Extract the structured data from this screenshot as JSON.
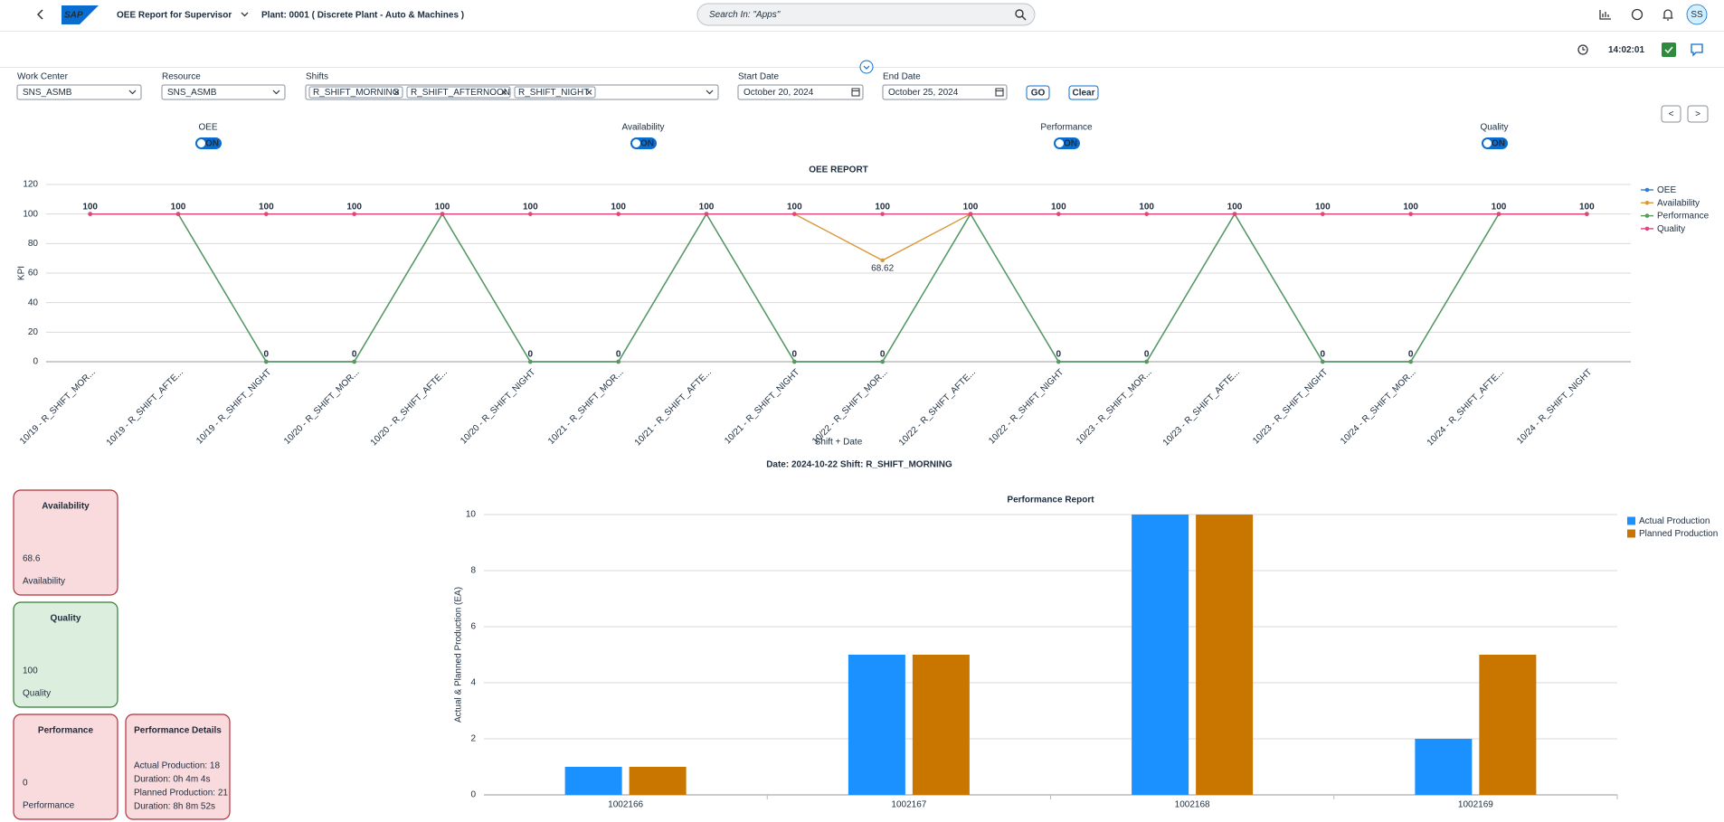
{
  "header": {
    "logo": "SAP",
    "title": "OEE Report for Supervisor",
    "plant": "Plant: 0001 ( Discrete Plant - Auto & Machines )",
    "search_placeholder": "Search In: \"Apps\"",
    "avatar": "SS",
    "time": "14:02:01"
  },
  "filters": {
    "work_center": {
      "label": "Work Center",
      "value": "SNS_ASMB"
    },
    "resource": {
      "label": "Resource",
      "value": "SNS_ASMB"
    },
    "shifts": {
      "label": "Shifts",
      "tokens": [
        "R_SHIFT_MORNING",
        "R_SHIFT_AFTERNOON",
        "R_SHIFT_NIGHT"
      ]
    },
    "start_date": {
      "label": "Start Date",
      "value": "October 20, 2024"
    },
    "end_date": {
      "label": "End Date",
      "value": "October 25, 2024"
    },
    "go": "GO",
    "clear": "Clear",
    "prev": "<",
    "next": ">"
  },
  "toggles": [
    {
      "label": "OEE",
      "state": "ON"
    },
    {
      "label": "Availability",
      "state": "ON"
    },
    {
      "label": "Performance",
      "state": "ON"
    },
    {
      "label": "Quality",
      "state": "ON"
    }
  ],
  "selection_title": "Date: 2024-10-22 Shift: R_SHIFT_MORNING",
  "kpi_cards": [
    {
      "title": "Availability",
      "value": 68.6,
      "caption": "Availability",
      "fill": "#f9dadd",
      "border": "#b3303a"
    },
    {
      "title": "Quality",
      "value": 100,
      "caption": "Quality",
      "fill": "#dcefdf",
      "border": "#2f7d32"
    },
    {
      "title": "Performance",
      "value": 0,
      "caption": "Performance",
      "fill": "#f9dadd",
      "border": "#b3303a"
    }
  ],
  "details_card": {
    "title": "Performance Details",
    "lines": [
      "Actual Production: 18",
      "Duration: 0h 4m 4s",
      "Planned Production: 21",
      "Duration: 8h 8m 52s"
    ],
    "fill": "#f9dadd",
    "border": "#b3303a"
  },
  "chart_data": [
    {
      "type": "line",
      "title": "OEE REPORT",
      "x_label": "Shift + Date",
      "y_label": "KPI",
      "categories": [
        "10/19 - R_SHIFT_MOR...",
        "10/19 - R_SHIFT_AFTE...",
        "10/19 - R_SHIFT_NIGHT",
        "10/20 - R_SHIFT_MOR...",
        "10/20 - R_SHIFT_AFTE...",
        "10/20 - R_SHIFT_NIGHT",
        "10/21 - R_SHIFT_MOR...",
        "10/21 - R_SHIFT_AFTE...",
        "10/21 - R_SHIFT_NIGHT",
        "10/22 - R_SHIFT_MOR...",
        "10/22 - R_SHIFT_AFTE...",
        "10/22 - R_SHIFT_NIGHT",
        "10/23 - R_SHIFT_MOR...",
        "10/23 - R_SHIFT_AFTE...",
        "10/23 - R_SHIFT_NIGHT",
        "10/24 - R_SHIFT_MOR...",
        "10/24 - R_SHIFT_AFTE...",
        "10/24 - R_SHIFT_NIGHT"
      ],
      "series": [
        {
          "name": "OEE",
          "color": "#2f7fd0",
          "values": [
            100,
            100,
            0,
            0,
            100,
            0,
            0,
            100,
            0,
            0,
            100,
            0,
            0,
            100,
            0,
            0,
            100,
            100
          ]
        },
        {
          "name": "Availability",
          "color": "#d99a3e",
          "values": [
            100,
            100,
            100,
            100,
            100,
            100,
            100,
            100,
            100,
            68.62,
            100,
            100,
            100,
            100,
            100,
            100,
            100,
            100
          ]
        },
        {
          "name": "Performance",
          "color": "#5a9a58",
          "values": [
            100,
            100,
            0,
            0,
            100,
            0,
            0,
            100,
            0,
            0,
            100,
            0,
            0,
            100,
            0,
            0,
            100,
            100
          ]
        },
        {
          "name": "Quality",
          "color": "#e0467c",
          "values": [
            100,
            100,
            100,
            100,
            100,
            100,
            100,
            100,
            100,
            100,
            100,
            100,
            100,
            100,
            100,
            100,
            100,
            100
          ]
        }
      ],
      "ylim": [
        0,
        120
      ],
      "yticks": [
        0,
        20,
        40,
        60,
        80,
        100,
        120
      ],
      "grid": true,
      "legend": "right"
    },
    {
      "type": "bar",
      "title": "Performance Report",
      "y_label": "Actual & Planned Production (EA)",
      "categories": [
        "1002166",
        "1002167",
        "1002168",
        "1002169"
      ],
      "series": [
        {
          "name": "Actual Production",
          "color": "#1b90ff",
          "values": [
            1,
            5,
            10,
            2
          ]
        },
        {
          "name": "Planned Production",
          "color": "#c87600",
          "values": [
            1,
            5,
            10,
            5
          ]
        }
      ],
      "ylim": [
        0,
        10
      ],
      "yticks": [
        0,
        2,
        4,
        6,
        8,
        10
      ],
      "grid": true,
      "legend": "right"
    }
  ]
}
